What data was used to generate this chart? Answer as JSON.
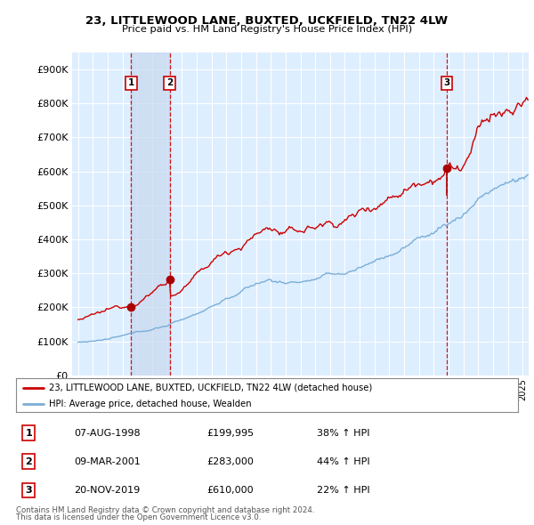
{
  "title": "23, LITTLEWOOD LANE, BUXTED, UCKFIELD, TN22 4LW",
  "subtitle": "Price paid vs. HM Land Registry's House Price Index (HPI)",
  "ytick_values": [
    0,
    100000,
    200000,
    300000,
    400000,
    500000,
    600000,
    700000,
    800000,
    900000
  ],
  "ylim": [
    0,
    950000
  ],
  "xlim_start": 1994.6,
  "xlim_end": 2025.4,
  "red_line_color": "#cc0000",
  "blue_line_color": "#7aaed6",
  "plot_bg_color": "#ddeeff",
  "grid_color": "#ffffff",
  "vline_color": "#cc0000",
  "shade_color": "#c8d8ee",
  "dot_color": "#aa0000",
  "purchases": [
    {
      "label": "1",
      "date_num": 1998.58,
      "price": 199995
    },
    {
      "label": "2",
      "date_num": 2001.18,
      "price": 283000
    },
    {
      "label": "3",
      "date_num": 2019.88,
      "price": 610000
    }
  ],
  "legend_entries": [
    "23, LITTLEWOOD LANE, BUXTED, UCKFIELD, TN22 4LW (detached house)",
    "HPI: Average price, detached house, Wealden"
  ],
  "table_data": [
    [
      "1",
      "07-AUG-1998",
      "£199,995",
      "38% ↑ HPI"
    ],
    [
      "2",
      "09-MAR-2001",
      "£283,000",
      "44% ↑ HPI"
    ],
    [
      "3",
      "20-NOV-2019",
      "£610,000",
      "22% ↑ HPI"
    ]
  ],
  "footnote1": "Contains HM Land Registry data © Crown copyright and database right 2024.",
  "footnote2": "This data is licensed under the Open Government Licence v3.0."
}
